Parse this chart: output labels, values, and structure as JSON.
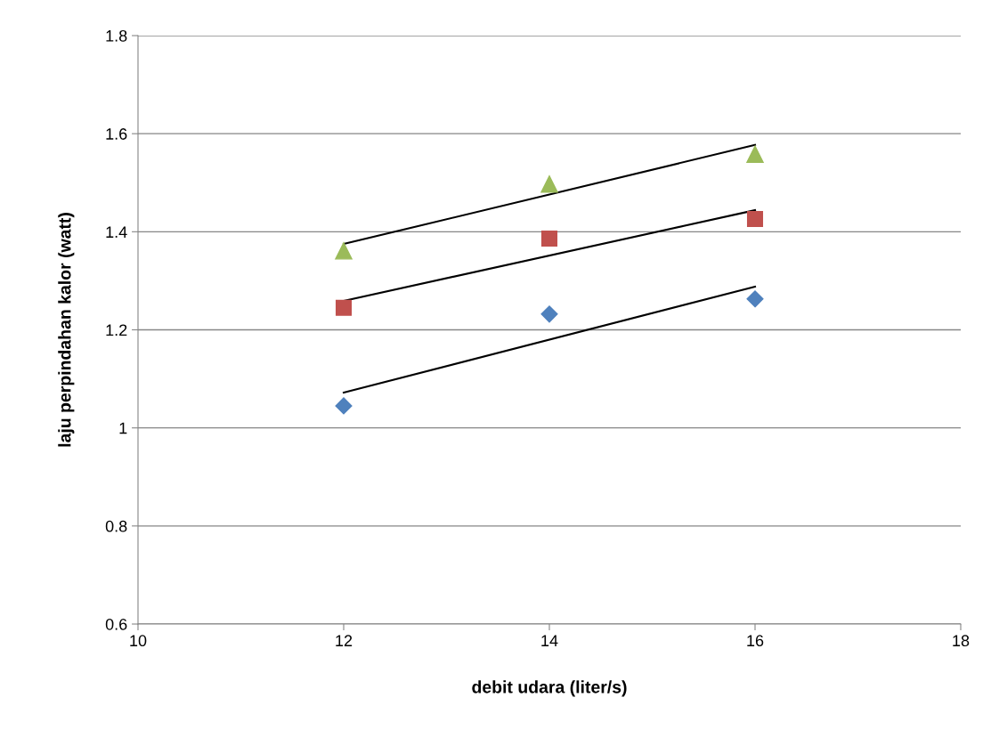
{
  "chart_data": {
    "type": "scatter",
    "xlabel": "debit udara (liter/s)",
    "ylabel": "laju perpindahan kalor (watt)",
    "xlim": [
      10,
      18
    ],
    "xticks": [
      10,
      12,
      14,
      16,
      18
    ],
    "ylim": [
      0.6,
      1.8
    ],
    "yticks": [
      {
        "value": 0.6,
        "label": "0.6"
      },
      {
        "value": 0.8,
        "label": "0.8"
      },
      {
        "value": 1,
        "label": "1"
      },
      {
        "value": 1.2,
        "label": "1.2"
      },
      {
        "value": 1.4,
        "label": "1.4"
      },
      {
        "value": 1.6,
        "label": "1.6"
      },
      {
        "value": 1.8,
        "label": "1.8"
      }
    ],
    "grid": "y",
    "legend": false,
    "series": [
      {
        "marker": "diamond",
        "color": "#4f81bd",
        "x": [
          12,
          14,
          16
        ],
        "values": [
          1.045,
          1.232,
          1.263
        ]
      },
      {
        "marker": "square",
        "color": "#c0504d",
        "x": [
          12,
          14,
          16
        ],
        "values": [
          1.245,
          1.386,
          1.426
        ]
      },
      {
        "marker": "triangle",
        "color": "#9bbb59",
        "x": [
          12,
          14,
          16
        ],
        "values": [
          1.361,
          1.497,
          1.558
        ]
      },
      {
        "type": "line",
        "marker": "none",
        "color": "#000000",
        "x": [
          12,
          16
        ],
        "values": [
          1.072,
          1.288
        ]
      },
      {
        "type": "line",
        "marker": "none",
        "color": "#000000",
        "x": [
          12,
          16
        ],
        "values": [
          1.259,
          1.444
        ]
      },
      {
        "type": "line",
        "marker": "none",
        "color": "#000000",
        "x": [
          12,
          16
        ],
        "values": [
          1.375,
          1.577
        ]
      }
    ]
  }
}
